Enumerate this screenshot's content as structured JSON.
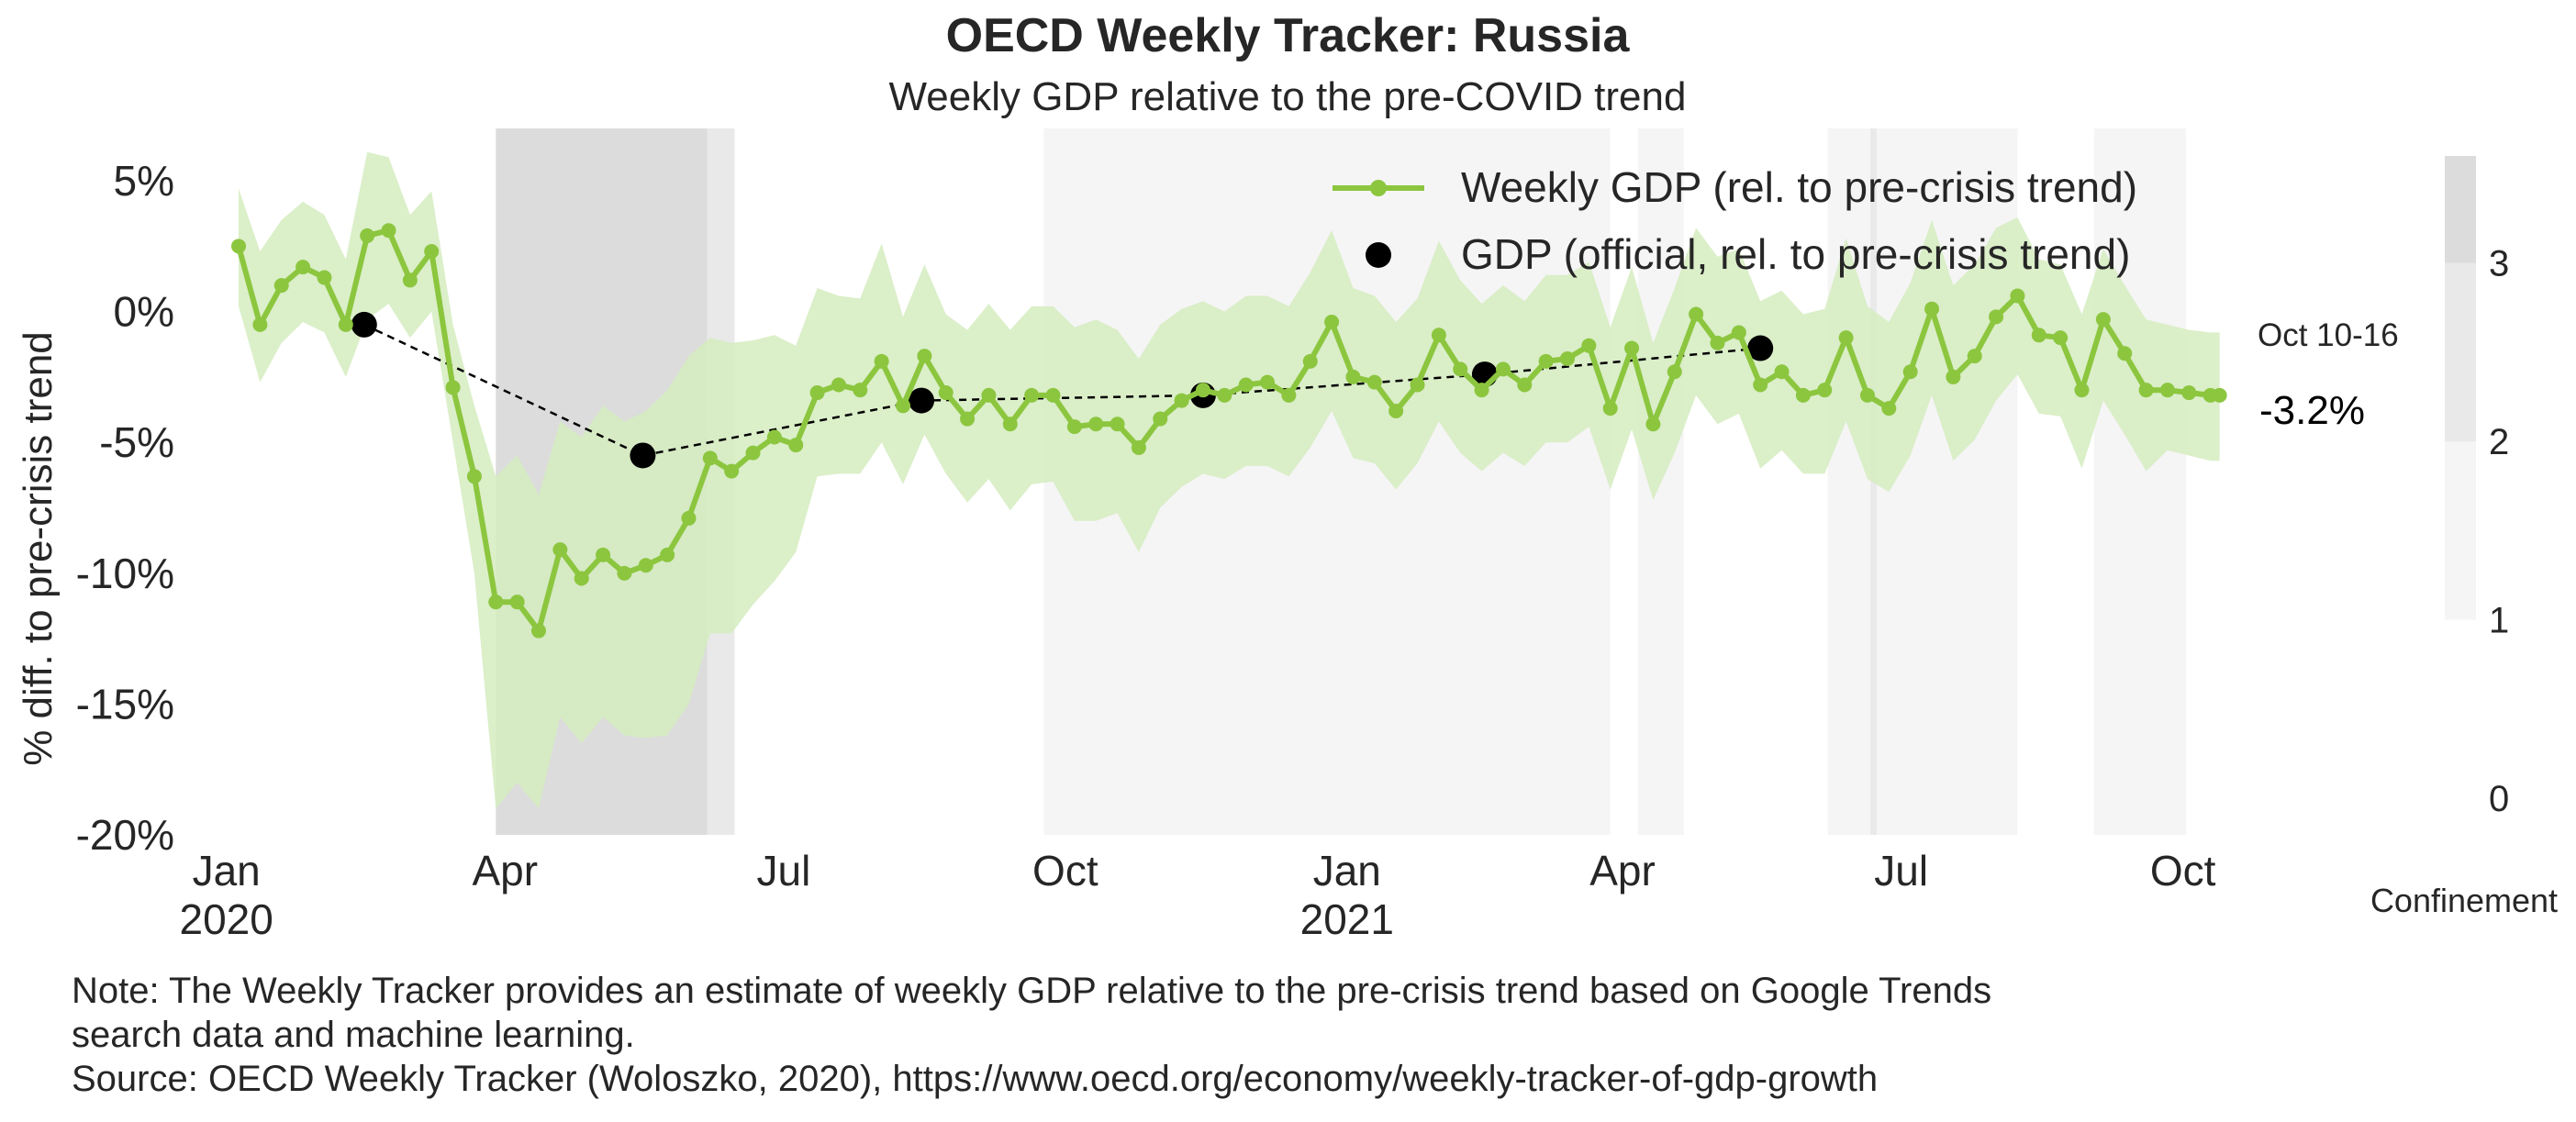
{
  "chart_data": {
    "type": "line",
    "title": "OECD Weekly Tracker: Russia",
    "subtitle": "Weekly GDP relative to the pre-COVID trend",
    "ylabel": "% diff. to pre-crisis trend",
    "xlabel": "",
    "ylim": [
      -20,
      7
    ],
    "yticks": [
      {
        "value": 5,
        "label": "5%"
      },
      {
        "value": 0,
        "label": "0%"
      },
      {
        "value": -5,
        "label": "-5%"
      },
      {
        "value": -10,
        "label": "-10%"
      },
      {
        "value": -15,
        "label": "-15%"
      },
      {
        "value": -20,
        "label": "-20%"
      }
    ],
    "xlim": [
      "2019-12-27",
      "2021-10-20"
    ],
    "xticks": [
      {
        "date": "2020-01-01",
        "label": "Jan",
        "sublabel": "2020"
      },
      {
        "date": "2020-04-01",
        "label": "Apr",
        "sublabel": ""
      },
      {
        "date": "2020-07-01",
        "label": "Jul",
        "sublabel": ""
      },
      {
        "date": "2020-10-01",
        "label": "Oct",
        "sublabel": ""
      },
      {
        "date": "2021-01-01",
        "label": "Jan",
        "sublabel": "2021"
      },
      {
        "date": "2021-04-01",
        "label": "Apr",
        "sublabel": ""
      },
      {
        "date": "2021-07-01",
        "label": "Jul",
        "sublabel": ""
      },
      {
        "date": "2021-10-01",
        "label": "Oct",
        "sublabel": ""
      }
    ],
    "grid": false,
    "legend_position": "top-right",
    "series": [
      {
        "name": "Weekly GDP (rel. to pre-crisis trend)",
        "color": "#8cc63f",
        "band_color": "#d5ecbf",
        "x": [
          "2020-01-05",
          "2020-01-12",
          "2020-01-19",
          "2020-01-26",
          "2020-02-02",
          "2020-02-09",
          "2020-02-16",
          "2020-02-23",
          "2020-03-01",
          "2020-03-08",
          "2020-03-15",
          "2020-03-22",
          "2020-03-29",
          "2020-04-05",
          "2020-04-12",
          "2020-04-19",
          "2020-04-26",
          "2020-05-03",
          "2020-05-10",
          "2020-05-17",
          "2020-05-24",
          "2020-05-31",
          "2020-06-07",
          "2020-06-14",
          "2020-06-21",
          "2020-06-28",
          "2020-07-05",
          "2020-07-12",
          "2020-07-19",
          "2020-07-26",
          "2020-08-02",
          "2020-08-09",
          "2020-08-16",
          "2020-08-23",
          "2020-08-30",
          "2020-09-06",
          "2020-09-13",
          "2020-09-20",
          "2020-09-27",
          "2020-10-04",
          "2020-10-11",
          "2020-10-18",
          "2020-10-25",
          "2020-11-01",
          "2020-11-08",
          "2020-11-15",
          "2020-11-22",
          "2020-11-29",
          "2020-12-06",
          "2020-12-13",
          "2020-12-20",
          "2020-12-27",
          "2021-01-03",
          "2021-01-10",
          "2021-01-17",
          "2021-01-24",
          "2021-01-31",
          "2021-02-07",
          "2021-02-14",
          "2021-02-21",
          "2021-02-28",
          "2021-03-07",
          "2021-03-14",
          "2021-03-21",
          "2021-03-28",
          "2021-04-04",
          "2021-04-11",
          "2021-04-18",
          "2021-04-25",
          "2021-05-02",
          "2021-05-09",
          "2021-05-16",
          "2021-05-23",
          "2021-05-30",
          "2021-06-06",
          "2021-06-13",
          "2021-06-20",
          "2021-06-27",
          "2021-07-04",
          "2021-07-11",
          "2021-07-18",
          "2021-07-25",
          "2021-08-01",
          "2021-08-08",
          "2021-08-15",
          "2021-08-22",
          "2021-08-29",
          "2021-09-05",
          "2021-09-12",
          "2021-09-19",
          "2021-09-26",
          "2021-10-03",
          "2021-10-10",
          "2021-10-13"
        ],
        "values": [
          2.5,
          -0.5,
          1.0,
          1.7,
          1.3,
          -0.5,
          2.9,
          3.1,
          1.2,
          2.3,
          -2.9,
          -6.3,
          -11.1,
          -11.1,
          -12.2,
          -9.1,
          -10.2,
          -9.3,
          -10.0,
          -9.7,
          -9.3,
          -7.9,
          -5.6,
          -6.1,
          -5.4,
          -4.8,
          -5.1,
          -3.1,
          -2.8,
          -3.0,
          -1.9,
          -3.6,
          -1.7,
          -3.1,
          -4.1,
          -3.2,
          -4.3,
          -3.2,
          -3.2,
          -4.4,
          -4.3,
          -4.3,
          -5.2,
          -4.1,
          -3.4,
          -3.0,
          -3.2,
          -2.8,
          -2.7,
          -3.2,
          -1.9,
          -0.4,
          -2.5,
          -2.7,
          -3.8,
          -2.8,
          -0.9,
          -2.2,
          -3.0,
          -2.2,
          -2.8,
          -1.9,
          -1.8,
          -1.3,
          -3.7,
          -1.4,
          -4.3,
          -2.3,
          -0.1,
          -1.2,
          -0.8,
          -2.8,
          -2.3,
          -3.2,
          -3.0,
          -1.0,
          -3.2,
          -3.7,
          -2.3,
          0.1,
          -2.5,
          -1.7,
          -0.2,
          0.6,
          -0.9,
          -1.0,
          -3.0,
          -0.3,
          -1.6,
          -3.0,
          -3.0,
          -3.1,
          -3.2,
          -3.2
        ],
        "band_upper": [
          4.7,
          2.3,
          3.5,
          4.2,
          3.7,
          2.0,
          6.1,
          5.9,
          3.7,
          4.6,
          -0.5,
          -3.6,
          -6.3,
          -5.5,
          -7.0,
          -4.2,
          -4.8,
          -3.6,
          -4.2,
          -3.8,
          -3.0,
          -1.7,
          -1.0,
          -1.2,
          -1.1,
          -0.9,
          -1.3,
          0.9,
          0.6,
          0.5,
          2.6,
          -0.2,
          1.8,
          -0.1,
          -0.7,
          0.3,
          -0.7,
          0.2,
          0.2,
          -0.6,
          -0.3,
          -0.7,
          -1.8,
          -0.5,
          0.1,
          0.4,
          0.0,
          0.6,
          0.6,
          0.2,
          1.5,
          3.1,
          0.9,
          0.6,
          -0.4,
          0.5,
          2.7,
          1.2,
          0.3,
          1.0,
          0.4,
          1.4,
          1.4,
          1.9,
          -0.6,
          1.7,
          -1.2,
          0.9,
          3.2,
          2.1,
          2.4,
          0.4,
          0.8,
          -0.1,
          0.1,
          2.8,
          0.2,
          -0.4,
          1.1,
          3.5,
          1.0,
          1.8,
          3.2,
          3.6,
          2.0,
          1.8,
          -0.1,
          2.4,
          1.0,
          -0.3,
          -0.5,
          -0.7,
          -0.8,
          -0.8
        ],
        "band_lower": [
          0.2,
          -2.7,
          -1.2,
          -0.4,
          -0.8,
          -2.5,
          -0.3,
          0.3,
          -1.0,
          0.0,
          -5.0,
          -10.0,
          -19.0,
          -18.0,
          -19.0,
          -15.5,
          -16.5,
          -15.5,
          -16.2,
          -16.3,
          -16.2,
          -15.0,
          -12.3,
          -12.3,
          -11.2,
          -10.3,
          -9.2,
          -6.3,
          -6.2,
          -6.2,
          -5.0,
          -6.6,
          -4.7,
          -6.2,
          -7.3,
          -6.4,
          -7.6,
          -6.6,
          -6.5,
          -8.0,
          -8.0,
          -7.7,
          -9.2,
          -7.5,
          -6.7,
          -6.2,
          -6.4,
          -5.9,
          -5.9,
          -6.3,
          -5.2,
          -3.8,
          -5.6,
          -5.8,
          -6.8,
          -5.8,
          -4.2,
          -5.4,
          -6.1,
          -5.4,
          -5.9,
          -5.0,
          -5.0,
          -4.4,
          -6.8,
          -4.5,
          -7.2,
          -5.4,
          -3.2,
          -4.3,
          -3.9,
          -6.0,
          -5.3,
          -6.2,
          -6.2,
          -4.2,
          -6.4,
          -6.9,
          -5.5,
          -3.2,
          -5.7,
          -4.9,
          -3.4,
          -2.4,
          -3.9,
          -4.0,
          -6.0,
          -3.4,
          -4.7,
          -6.1,
          -5.3,
          -5.5,
          -5.7,
          -5.7
        ]
      },
      {
        "name": "GDP (official, rel. to pre-crisis trend)",
        "color": "#000000",
        "x": [
          "2020-02-15",
          "2020-05-16",
          "2020-08-15",
          "2020-11-15",
          "2021-02-15",
          "2021-05-16"
        ],
        "values": [
          -0.5,
          -5.5,
          -3.4,
          -3.2,
          -2.4,
          -1.4
        ]
      }
    ],
    "confinement": {
      "label": "Confinement",
      "scale_ticks": [
        {
          "value": 0,
          "label": "0"
        },
        {
          "value": 1,
          "label": "1"
        },
        {
          "value": 2,
          "label": "2"
        },
        {
          "value": 3,
          "label": "3"
        }
      ],
      "periods": [
        {
          "start": "2020-03-29",
          "end": "2020-06-06",
          "level": 3
        },
        {
          "start": "2020-06-06",
          "end": "2020-06-15",
          "level": 2
        },
        {
          "start": "2020-09-24",
          "end": "2021-03-28",
          "level": 1
        },
        {
          "start": "2021-04-06",
          "end": "2021-04-21",
          "level": 1
        },
        {
          "start": "2021-06-07",
          "end": "2021-08-08",
          "level": 1
        },
        {
          "start": "2021-06-21",
          "end": "2021-06-23",
          "level": 2
        },
        {
          "start": "2021-09-02",
          "end": "2021-10-02",
          "level": 1
        }
      ],
      "level_colors": {
        "1": "#f5f5f5",
        "2": "#e9e9e9",
        "3": "#dcdcdc"
      }
    },
    "annotation": {
      "date_label": "Oct 10-16",
      "value_label": "-3.2%"
    },
    "legend": [
      "Weekly GDP (rel. to pre-crisis trend)",
      "GDP (official, rel. to pre-crisis trend)"
    ]
  },
  "notes": {
    "line1": "Note: The Weekly Tracker provides an estimate of weekly GDP relative to the pre-crisis trend based on Google Trends",
    "line2": "search data and machine learning.",
    "line3": "Source: OECD Weekly Tracker (Woloszko, 2020), https://www.oecd.org/economy/weekly-tracker-of-gdp-growth"
  }
}
